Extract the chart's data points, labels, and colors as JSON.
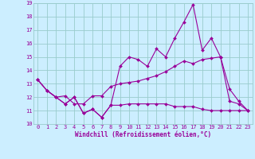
{
  "x": [
    0,
    1,
    2,
    3,
    4,
    5,
    6,
    7,
    8,
    9,
    10,
    11,
    12,
    13,
    14,
    15,
    16,
    17,
    18,
    19,
    20,
    21,
    22,
    23
  ],
  "line1": [
    13.3,
    12.5,
    12.0,
    11.5,
    12.0,
    10.8,
    11.1,
    10.5,
    11.4,
    11.4,
    11.5,
    11.5,
    11.5,
    11.5,
    11.5,
    11.3,
    11.3,
    11.3,
    11.1,
    11.0,
    11.0,
    11.0,
    11.0,
    11.0
  ],
  "line2": [
    13.3,
    12.5,
    12.0,
    11.5,
    12.0,
    10.8,
    11.1,
    10.5,
    11.4,
    14.3,
    15.0,
    14.8,
    14.3,
    15.6,
    15.0,
    16.4,
    17.6,
    18.9,
    15.5,
    16.4,
    15.0,
    11.7,
    11.5,
    11.0
  ],
  "line3": [
    13.3,
    12.5,
    12.0,
    12.1,
    11.5,
    11.5,
    12.1,
    12.1,
    12.8,
    13.0,
    13.1,
    13.2,
    13.4,
    13.6,
    13.9,
    14.3,
    14.7,
    14.5,
    14.8,
    14.9,
    15.0,
    12.6,
    11.7,
    11.0
  ],
  "color": "#990099",
  "bg_color": "#cceeff",
  "grid_color": "#99cccc",
  "xlabel": "Windchill (Refroidissement éolien,°C)",
  "xlim": [
    -0.5,
    23.5
  ],
  "ylim": [
    10,
    19
  ],
  "yticks": [
    10,
    11,
    12,
    13,
    14,
    15,
    16,
    17,
    18,
    19
  ],
  "xticks": [
    0,
    1,
    2,
    3,
    4,
    5,
    6,
    7,
    8,
    9,
    10,
    11,
    12,
    13,
    14,
    15,
    16,
    17,
    18,
    19,
    20,
    21,
    22,
    23
  ],
  "marker_size": 2.0,
  "line_width": 0.8,
  "tick_fontsize": 5.0,
  "xlabel_fontsize": 5.5
}
